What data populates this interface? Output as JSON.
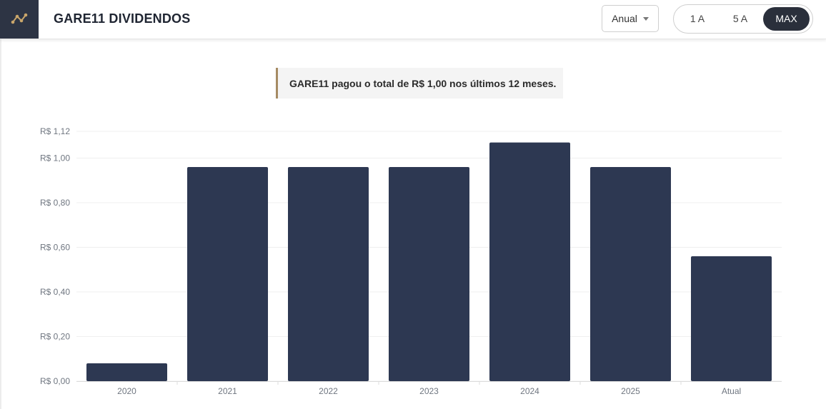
{
  "header": {
    "title": "GARE11 DIVIDENDOS",
    "period_select": "Anual",
    "range_buttons": [
      "1 A",
      "5 A",
      "MAX"
    ],
    "active_range": "MAX",
    "logo_icon": "chart-line-icon"
  },
  "summary": {
    "text": "GARE11 pagou o total de R$ 1,00 nos últimos 12 meses."
  },
  "colors": {
    "bar": "#2d3852",
    "accent": "#a68b63",
    "header_dark": "#2d3444"
  },
  "chart_data": {
    "type": "bar",
    "categories": [
      "2020",
      "2021",
      "2022",
      "2023",
      "2024",
      "2025",
      "Atual"
    ],
    "values": [
      0.08,
      0.96,
      0.96,
      0.96,
      1.07,
      0.96,
      0.56
    ],
    "ylim": [
      0,
      1.12
    ],
    "yticks": [
      0,
      0.2,
      0.4,
      0.6,
      0.8,
      1.0,
      1.12
    ],
    "ytick_labels": [
      "R$ 0,00",
      "R$ 0,20",
      "R$ 0,40",
      "R$ 0,60",
      "R$ 0,80",
      "R$ 1,00",
      "R$ 1,12"
    ],
    "grid": true
  }
}
